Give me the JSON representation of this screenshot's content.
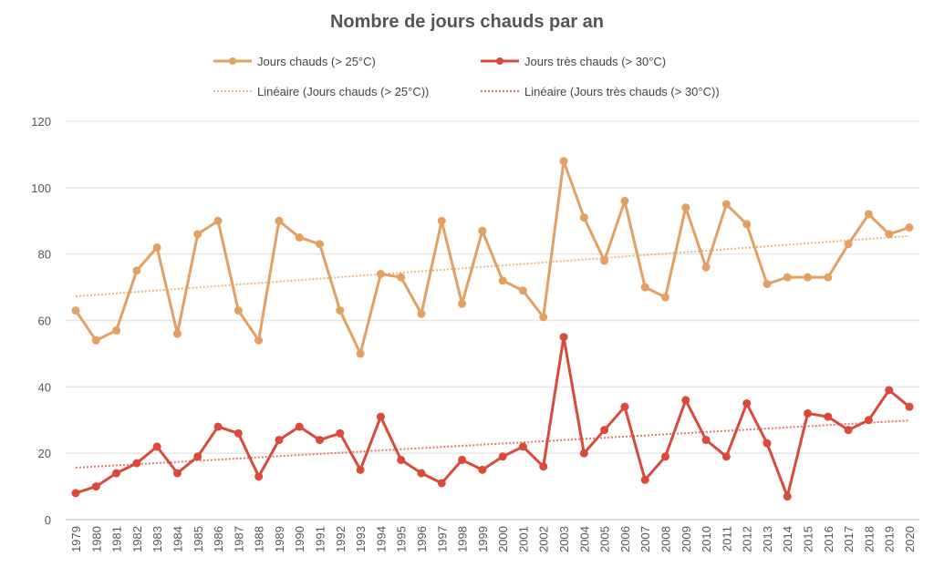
{
  "chart_data": {
    "type": "line",
    "title": "Nombre de jours chauds par an",
    "xlabel": "",
    "ylabel": "",
    "ylim": [
      0,
      120
    ],
    "yticks": [
      0,
      20,
      40,
      60,
      80,
      100,
      120
    ],
    "grid": true,
    "legend_placement": "top",
    "colors": {
      "hot": "#E3A062",
      "very_hot": "#D94A3A"
    },
    "x": [
      "1979",
      "1980",
      "1981",
      "1982",
      "1983",
      "1984",
      "1985",
      "1986",
      "1987",
      "1988",
      "1989",
      "1990",
      "1991",
      "1992",
      "1993",
      "1994",
      "1995",
      "1996",
      "1997",
      "1998",
      "1999",
      "2000",
      "2001",
      "2002",
      "2003",
      "2004",
      "2005",
      "2006",
      "2007",
      "2008",
      "2009",
      "2010",
      "2011",
      "2012",
      "2013",
      "2014",
      "2015",
      "2016",
      "2017",
      "2018",
      "2019",
      "2020"
    ],
    "series": [
      {
        "name": "Jours chauds (> 25°C)",
        "trend_name": "Linéaire (Jours chauds (> 25°C))",
        "values": [
          63,
          54,
          57,
          75,
          82,
          56,
          86,
          90,
          63,
          54,
          90,
          85,
          83,
          63,
          50,
          74,
          73,
          62,
          90,
          65,
          87,
          72,
          69,
          61,
          108,
          91,
          78,
          96,
          70,
          67,
          94,
          76,
          95,
          89,
          71,
          73,
          73,
          73,
          83,
          92,
          86,
          88
        ]
      },
      {
        "name": "Jours très chauds (> 30°C)",
        "trend_name": "Linéaire (Jours très chauds (> 30°C))",
        "values": [
          8,
          10,
          14,
          17,
          22,
          14,
          19,
          28,
          26,
          13,
          24,
          28,
          24,
          26,
          15,
          31,
          18,
          14,
          11,
          18,
          15,
          19,
          22,
          16,
          55,
          20,
          27,
          34,
          12,
          19,
          36,
          24,
          19,
          35,
          23,
          7,
          32,
          31,
          27,
          30,
          39,
          34
        ]
      }
    ]
  }
}
